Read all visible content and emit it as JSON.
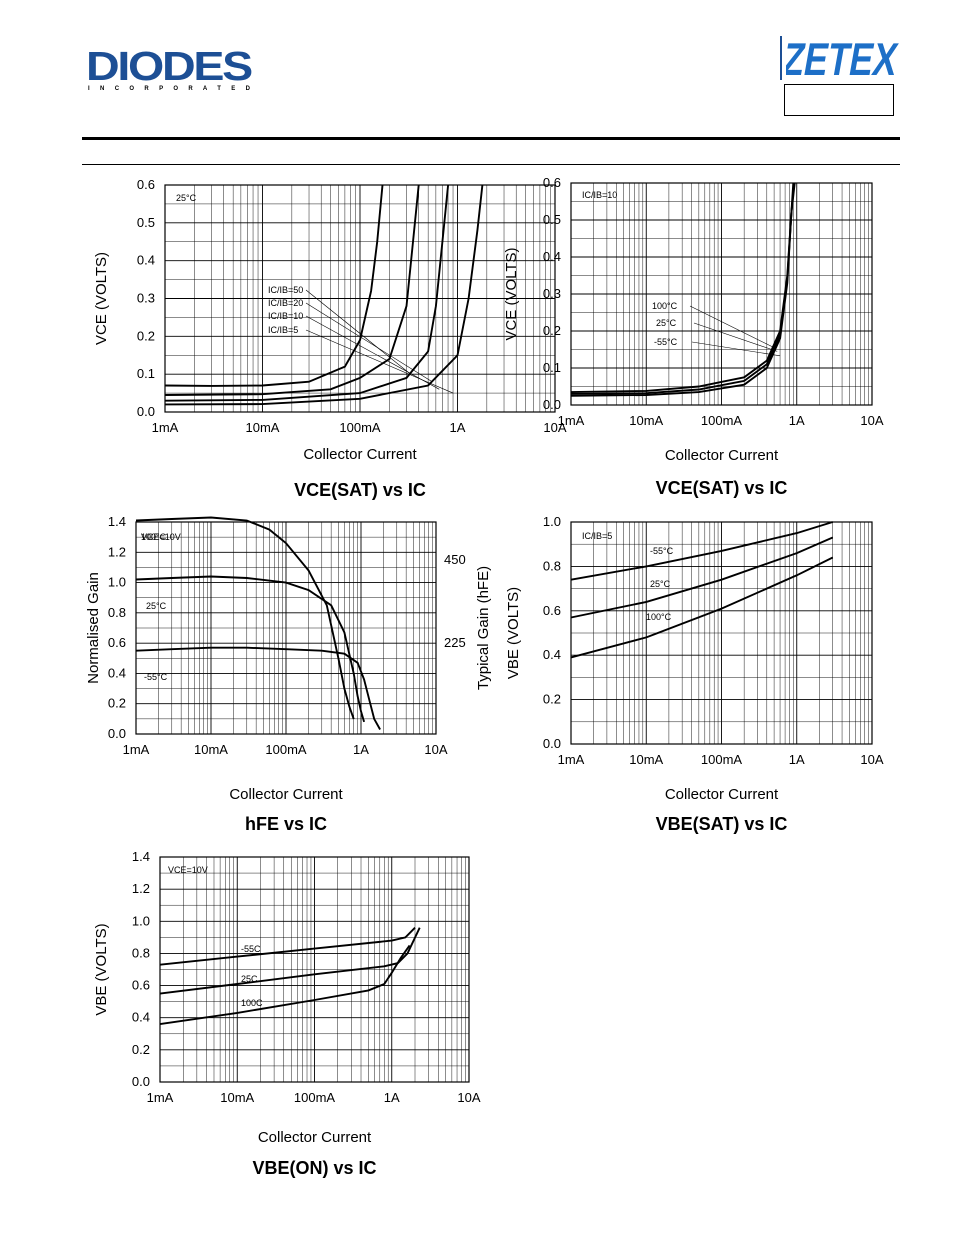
{
  "header": {
    "left_logo_text": "DIODES",
    "left_logo_subtext": "I N C O R P O R A T E D",
    "right_logo_text": "ZETEX"
  },
  "charts": [
    {
      "id": "c1",
      "title": "VCE(SAT) vs IC",
      "xlabel": "Collector Current",
      "ylabel": "VCE (VOLTS)",
      "corner": "25°C",
      "legend": [
        "IC/IB=50",
        "IC/IB=20",
        "IC/IB=10",
        "IC/IB=5"
      ],
      "xticks": [
        "1mA",
        "10mA",
        "100mA",
        "1A",
        "10A"
      ],
      "yticks": [
        "0.0",
        "0.1",
        "0.2",
        "0.3",
        "0.4",
        "0.5",
        "0.6"
      ]
    },
    {
      "id": "c2",
      "title": "VCE(SAT) vs IC",
      "xlabel": "Collector Current",
      "ylabel": "VCE (VOLTS)",
      "corner": "IC/IB=10",
      "legend": [
        "100°C",
        "25°C",
        "-55°C"
      ],
      "xticks": [
        "1mA",
        "10mA",
        "100mA",
        "1A",
        "10A"
      ],
      "yticks": [
        "0.0",
        "0.1",
        "0.2",
        "0.3",
        "0.4",
        "0.5",
        "0.6"
      ]
    },
    {
      "id": "c3",
      "title": "hFE vs IC",
      "xlabel": "Collector Current",
      "ylabel": "Normalised Gain",
      "ylabel_right": "Typical Gain (hFE)",
      "corner": "VCE=10V",
      "legend": [
        "100°C",
        "25°C",
        "-55°C"
      ],
      "xticks": [
        "1mA",
        "10mA",
        "100mA",
        "1A",
        "10A"
      ],
      "yticks": [
        "0.0",
        "0.2",
        "0.4",
        "0.6",
        "0.8",
        "1.0",
        "1.2",
        "1.4"
      ],
      "yticks_right": [
        "225",
        "450"
      ]
    },
    {
      "id": "c4",
      "title": "VBE(SAT) vs IC",
      "xlabel": "Collector Current",
      "ylabel": "VBE (VOLTS)",
      "corner": "IC/IB=5",
      "legend": [
        "-55°C",
        "25°C",
        "100°C"
      ],
      "xticks": [
        "1mA",
        "10mA",
        "100mA",
        "1A",
        "10A"
      ],
      "yticks": [
        "0.0",
        "0.2",
        "0.4",
        "0.6",
        "0.8",
        "1.0"
      ]
    },
    {
      "id": "c5",
      "title": "VBE(ON) vs IC",
      "xlabel": "Collector Current",
      "ylabel": "VBE (VOLTS)",
      "corner": "VCE=10V",
      "legend": [
        "-55C",
        "25C",
        "100C"
      ],
      "xticks": [
        "1mA",
        "10mA",
        "100mA",
        "1A",
        "10A"
      ],
      "yticks": [
        "0.0",
        "0.2",
        "0.4",
        "0.6",
        "0.8",
        "1.0",
        "1.2",
        "1.4"
      ]
    }
  ],
  "chart_data": [
    {
      "type": "line",
      "title": "VCE(SAT) vs IC",
      "xlabel": "Collector Current",
      "ylabel": "VCE (VOLTS)",
      "x_scale": "log",
      "xlim": [
        0.001,
        10
      ],
      "ylim": [
        0,
        0.6
      ],
      "grid": true,
      "series": [
        {
          "name": "IC/IB=50",
          "x": [
            0.001,
            0.003,
            0.01,
            0.03,
            0.07,
            0.1,
            0.13,
            0.15,
            0.17
          ],
          "y": [
            0.07,
            0.069,
            0.07,
            0.08,
            0.12,
            0.19,
            0.32,
            0.45,
            0.6
          ]
        },
        {
          "name": "IC/IB=20",
          "x": [
            0.001,
            0.01,
            0.05,
            0.1,
            0.2,
            0.3,
            0.35,
            0.4
          ],
          "y": [
            0.045,
            0.047,
            0.06,
            0.09,
            0.14,
            0.28,
            0.45,
            0.6
          ]
        },
        {
          "name": "IC/IB=10",
          "x": [
            0.001,
            0.01,
            0.1,
            0.3,
            0.5,
            0.6,
            0.7,
            0.8
          ],
          "y": [
            0.03,
            0.032,
            0.05,
            0.09,
            0.16,
            0.28,
            0.45,
            0.6
          ]
        },
        {
          "name": "IC/IB=5",
          "x": [
            0.001,
            0.01,
            0.1,
            0.5,
            1.0,
            1.3,
            1.6,
            1.8
          ],
          "y": [
            0.02,
            0.021,
            0.035,
            0.07,
            0.15,
            0.3,
            0.48,
            0.6
          ]
        }
      ]
    },
    {
      "type": "line",
      "title": "VCE(SAT) vs IC",
      "xlabel": "Collector Current",
      "ylabel": "VCE (VOLTS)",
      "x_scale": "log",
      "xlim": [
        0.001,
        10
      ],
      "ylim": [
        0,
        0.6
      ],
      "grid": true,
      "series": [
        {
          "name": "100°C",
          "x": [
            0.001,
            0.01,
            0.05,
            0.2,
            0.4,
            0.6,
            0.75,
            0.85,
            0.9
          ],
          "y": [
            0.035,
            0.038,
            0.05,
            0.075,
            0.12,
            0.2,
            0.35,
            0.52,
            0.6
          ]
        },
        {
          "name": "25°C",
          "x": [
            0.001,
            0.01,
            0.05,
            0.2,
            0.4,
            0.6,
            0.75,
            0.85,
            0.92
          ],
          "y": [
            0.03,
            0.032,
            0.042,
            0.065,
            0.11,
            0.19,
            0.34,
            0.52,
            0.6
          ]
        },
        {
          "name": "-55°C",
          "x": [
            0.001,
            0.01,
            0.05,
            0.2,
            0.4,
            0.6,
            0.75,
            0.85,
            0.94
          ],
          "y": [
            0.025,
            0.027,
            0.035,
            0.055,
            0.1,
            0.18,
            0.33,
            0.52,
            0.6
          ]
        }
      ]
    },
    {
      "type": "line",
      "title": "hFE vs IC",
      "xlabel": "Collector Current",
      "ylabel": "Normalised Gain",
      "x_scale": "log",
      "xlim": [
        0.001,
        10
      ],
      "ylim": [
        0,
        1.4
      ],
      "grid": true,
      "series": [
        {
          "name": "100°C",
          "x": [
            0.001,
            0.003,
            0.01,
            0.03,
            0.06,
            0.1,
            0.2,
            0.35,
            0.5,
            0.6,
            0.7,
            0.8
          ],
          "y": [
            1.41,
            1.42,
            1.43,
            1.41,
            1.35,
            1.26,
            1.08,
            0.85,
            0.5,
            0.3,
            0.18,
            0.1
          ]
        },
        {
          "name": "25°C",
          "x": [
            0.001,
            0.003,
            0.01,
            0.03,
            0.1,
            0.2,
            0.4,
            0.6,
            0.8,
            0.9,
            1.0,
            1.1
          ],
          "y": [
            1.02,
            1.03,
            1.04,
            1.03,
            1.0,
            0.95,
            0.85,
            0.67,
            0.4,
            0.25,
            0.15,
            0.08
          ]
        },
        {
          "name": "-55°C",
          "x": [
            0.001,
            0.003,
            0.01,
            0.03,
            0.1,
            0.3,
            0.6,
            0.9,
            1.1,
            1.3,
            1.5,
            1.8
          ],
          "y": [
            0.55,
            0.56,
            0.57,
            0.57,
            0.56,
            0.55,
            0.53,
            0.47,
            0.36,
            0.22,
            0.1,
            0.03
          ]
        }
      ]
    },
    {
      "type": "line",
      "title": "VBE(SAT) vs IC",
      "xlabel": "Collector Current",
      "ylabel": "VBE (VOLTS)",
      "x_scale": "log",
      "xlim": [
        0.001,
        10
      ],
      "ylim": [
        0,
        1.0
      ],
      "grid": true,
      "series": [
        {
          "name": "-55°C",
          "x": [
            0.001,
            0.01,
            0.1,
            1,
            3
          ],
          "y": [
            0.74,
            0.8,
            0.87,
            0.95,
            1.0
          ]
        },
        {
          "name": "25°C",
          "x": [
            0.001,
            0.01,
            0.1,
            1,
            3
          ],
          "y": [
            0.57,
            0.64,
            0.74,
            0.86,
            0.93
          ]
        },
        {
          "name": "100°C",
          "x": [
            0.001,
            0.01,
            0.1,
            1,
            3
          ],
          "y": [
            0.39,
            0.48,
            0.61,
            0.76,
            0.84
          ]
        }
      ]
    },
    {
      "type": "line",
      "title": "VBE(ON) vs IC",
      "xlabel": "Collector Current",
      "ylabel": "VBE (VOLTS)",
      "x_scale": "log",
      "xlim": [
        0.001,
        10
      ],
      "ylim": [
        0,
        1.4
      ],
      "grid": true,
      "series": [
        {
          "name": "-55C",
          "x": [
            0.001,
            0.01,
            0.1,
            1,
            1.5,
            2.0
          ],
          "y": [
            0.73,
            0.78,
            0.83,
            0.88,
            0.9,
            0.96
          ]
        },
        {
          "name": "25C",
          "x": [
            0.001,
            0.01,
            0.1,
            0.8,
            1.2,
            1.6,
            2.3
          ],
          "y": [
            0.55,
            0.61,
            0.67,
            0.72,
            0.74,
            0.8,
            0.96
          ]
        },
        {
          "name": "100C",
          "x": [
            0.001,
            0.01,
            0.1,
            0.5,
            0.8,
            1.0,
            1.3,
            1.7
          ],
          "y": [
            0.36,
            0.43,
            0.51,
            0.57,
            0.61,
            0.68,
            0.77,
            0.85
          ]
        }
      ]
    }
  ]
}
